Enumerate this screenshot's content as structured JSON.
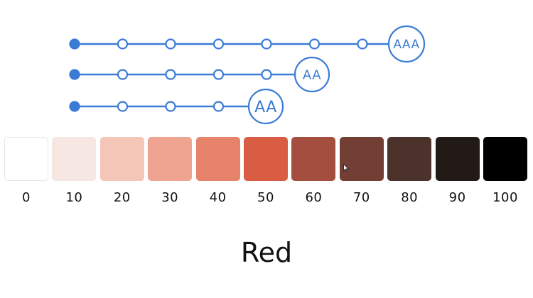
{
  "colors": {
    "accent": "#3a7bd5",
    "ring_fill": "#ffffff",
    "text": "#111111"
  },
  "contrast_rows": [
    {
      "badge": "AAA",
      "level_step": 70
    },
    {
      "badge": "AA",
      "level_step": 50
    },
    {
      "badge": "AA",
      "level_step": 40
    }
  ],
  "swatches": [
    {
      "step": "0",
      "color": "#ffffff"
    },
    {
      "step": "10",
      "color": "#f6e7e3"
    },
    {
      "step": "20",
      "color": "#f3c6b7"
    },
    {
      "step": "30",
      "color": "#eea491"
    },
    {
      "step": "40",
      "color": "#e8836b"
    },
    {
      "step": "50",
      "color": "#d85d42"
    },
    {
      "step": "60",
      "color": "#a44e3f"
    },
    {
      "step": "70",
      "color": "#733f35"
    },
    {
      "step": "80",
      "color": "#4b332b"
    },
    {
      "step": "90",
      "color": "#211a17"
    },
    {
      "step": "100",
      "color": "#000000"
    }
  ],
  "palette_name": "Red"
}
